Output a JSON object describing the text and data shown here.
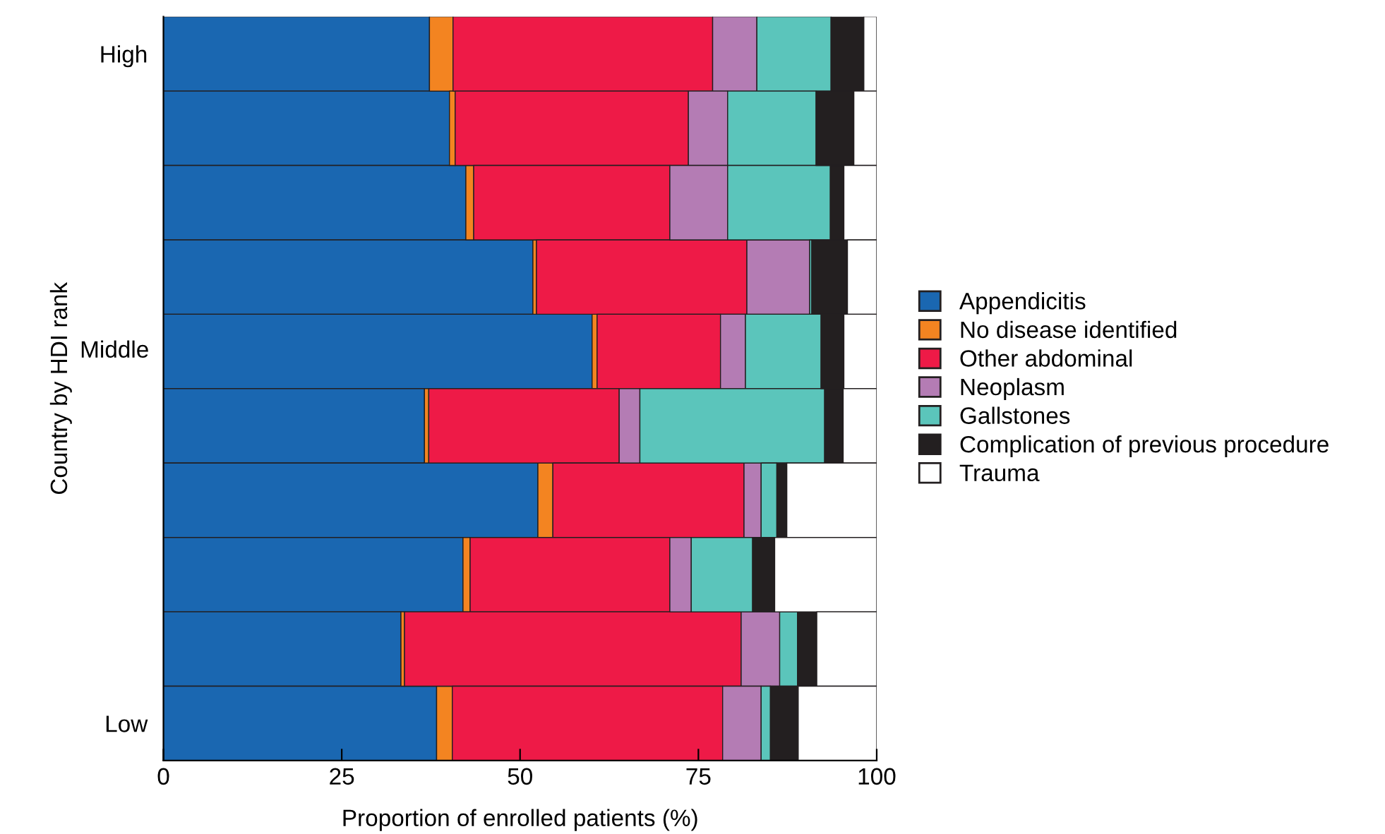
{
  "chart_data": {
    "type": "bar",
    "orientation": "horizontal",
    "stacked": true,
    "xlabel": "Proportion of enrolled patients (%)",
    "ylabel": "Country by HDI rank",
    "categories": [
      "High",
      null,
      null,
      null,
      null,
      null,
      null,
      null,
      null,
      "Low"
    ],
    "annotations": [
      "Middle"
    ],
    "xlim": [
      0,
      100
    ],
    "xticks": [
      0,
      25,
      50,
      75,
      100
    ],
    "grid": false,
    "legend": "right",
    "series": [
      {
        "name": "Appendicitis",
        "color": "#1a67b1",
        "values": [
          37.3,
          40.1,
          42.4,
          51.8,
          60.1,
          36.6,
          52.5,
          42.0,
          33.3,
          38.3
        ]
      },
      {
        "name": "No disease identified",
        "color": "#f38421",
        "values": [
          3.3,
          0.8,
          1.1,
          0.5,
          0.7,
          0.6,
          2.1,
          1.0,
          0.5,
          2.2
        ]
      },
      {
        "name": "Other abdominal",
        "color": "#ee1a47",
        "values": [
          36.4,
          32.7,
          27.5,
          29.5,
          17.3,
          26.7,
          26.8,
          28.0,
          47.2,
          37.9
        ]
      },
      {
        "name": "Neoplasm",
        "color": "#b47cb4",
        "values": [
          6.2,
          5.5,
          8.1,
          8.8,
          3.5,
          2.9,
          2.4,
          3.0,
          5.4,
          5.4
        ]
      },
      {
        "name": "Gallstones",
        "color": "#5bc5bb",
        "values": [
          10.4,
          12.4,
          14.4,
          0.3,
          10.6,
          25.9,
          2.2,
          8.6,
          2.5,
          1.3
        ]
      },
      {
        "name": "Complication of previous procedure",
        "color": "#231f20",
        "values": [
          4.6,
          5.3,
          1.9,
          5.0,
          3.2,
          2.6,
          1.4,
          3.1,
          2.7,
          3.9
        ]
      },
      {
        "name": "Trauma",
        "color": "#ffffff",
        "values": [
          1.8,
          3.2,
          4.6,
          4.1,
          4.6,
          4.7,
          12.6,
          14.3,
          8.4,
          11.0
        ]
      }
    ]
  }
}
